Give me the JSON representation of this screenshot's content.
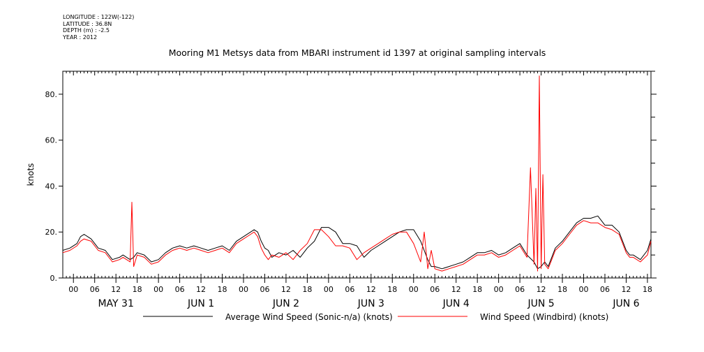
{
  "header": {
    "longitude": "LONGITUDE : 122W(-122)",
    "latitude": "LATITUDE : 36.8N",
    "depth": "DEPTH (m) : -2.5",
    "year": "YEAR : 2012"
  },
  "chart_data": {
    "type": "line",
    "title": "Mooring M1 Metsys data from MBARI instrument id 1397 at original sampling intervals",
    "ylabel": "knots",
    "xlabel": "",
    "ylim": [
      0,
      90
    ],
    "yticks": [
      0,
      20,
      40,
      60,
      80
    ],
    "ytick_labels": [
      "0.",
      "20.",
      "40.",
      "60.",
      "80."
    ],
    "xlim_hours": [
      -3,
      163
    ],
    "x_hour_labels": [
      {
        "h": 0,
        "label": "00"
      },
      {
        "h": 6,
        "label": "06"
      },
      {
        "h": 12,
        "label": "12"
      },
      {
        "h": 18,
        "label": "18"
      },
      {
        "h": 24,
        "label": "00"
      },
      {
        "h": 30,
        "label": "06"
      },
      {
        "h": 36,
        "label": "12"
      },
      {
        "h": 42,
        "label": "18"
      },
      {
        "h": 48,
        "label": "00"
      },
      {
        "h": 54,
        "label": "06"
      },
      {
        "h": 60,
        "label": "12"
      },
      {
        "h": 66,
        "label": "18"
      },
      {
        "h": 72,
        "label": "00"
      },
      {
        "h": 78,
        "label": "06"
      },
      {
        "h": 84,
        "label": "12"
      },
      {
        "h": 90,
        "label": "18"
      },
      {
        "h": 96,
        "label": "00"
      },
      {
        "h": 102,
        "label": "06"
      },
      {
        "h": 108,
        "label": "12"
      },
      {
        "h": 114,
        "label": "18"
      },
      {
        "h": 120,
        "label": "00"
      },
      {
        "h": 126,
        "label": "06"
      },
      {
        "h": 132,
        "label": "12"
      },
      {
        "h": 138,
        "label": "18"
      },
      {
        "h": 144,
        "label": "00"
      },
      {
        "h": 150,
        "label": "06"
      },
      {
        "h": 156,
        "label": "12"
      },
      {
        "h": 162,
        "label": "18"
      }
    ],
    "day_labels": [
      {
        "h": 12,
        "label": "MAY 31"
      },
      {
        "h": 36,
        "label": "JUN  1"
      },
      {
        "h": 60,
        "label": "JUN  2"
      },
      {
        "h": 84,
        "label": "JUN  3"
      },
      {
        "h": 108,
        "label": "JUN  4"
      },
      {
        "h": 132,
        "label": "JUN  5"
      },
      {
        "h": 156,
        "label": "JUN  6"
      }
    ],
    "grid": false,
    "legend_position": "bottom",
    "series": [
      {
        "name": "Average Wind Speed (Sonic-n/a) (knots)",
        "color": "#000000",
        "x_hours": [
          -3,
          -1,
          1,
          2,
          3,
          5,
          7,
          9,
          11,
          13,
          14,
          15,
          16,
          17,
          18,
          20,
          22,
          24,
          26,
          28,
          30,
          32,
          34,
          36,
          38,
          40,
          42,
          44,
          46,
          48,
          50,
          51,
          52,
          53,
          54,
          55,
          56,
          58,
          60,
          62,
          64,
          66,
          68,
          70,
          72,
          74,
          76,
          78,
          80,
          82,
          84,
          86,
          88,
          90,
          92,
          94,
          96,
          98,
          100,
          101,
          102,
          104,
          106,
          108,
          110,
          112,
          114,
          116,
          118,
          120,
          122,
          124,
          126,
          128,
          130,
          131,
          132,
          133,
          134,
          135,
          136,
          138,
          140,
          142,
          144,
          146,
          148,
          150,
          152,
          154,
          156,
          157,
          158,
          160,
          162,
          163
        ],
        "values": [
          12,
          13,
          15,
          18,
          19,
          17,
          13,
          12,
          8,
          9,
          10,
          9,
          8,
          9,
          11,
          10,
          7,
          8,
          11,
          13,
          14,
          13,
          14,
          13,
          12,
          13,
          14,
          12,
          16,
          18,
          20,
          21,
          20,
          16,
          13,
          12,
          9,
          11,
          10,
          12,
          9,
          13,
          16,
          22,
          22,
          20,
          15,
          15,
          14,
          9,
          12,
          14,
          16,
          18,
          20,
          21,
          21,
          16,
          8,
          5,
          5,
          4,
          5,
          6,
          7,
          9,
          11,
          11,
          12,
          10,
          11,
          13,
          15,
          10,
          7,
          4,
          5,
          7,
          5,
          9,
          13,
          16,
          20,
          24,
          26,
          26,
          27,
          23,
          23,
          20,
          12,
          10,
          10,
          8,
          12,
          17
        ]
      },
      {
        "name": "Wind Speed (Windbird) (knots)",
        "color": "#ff0000",
        "x_hours": [
          -3,
          -1,
          1,
          2,
          3,
          5,
          7,
          9,
          11,
          13,
          14,
          15,
          16,
          16.5,
          17,
          18,
          20,
          22,
          24,
          26,
          28,
          30,
          32,
          34,
          36,
          38,
          40,
          42,
          44,
          46,
          48,
          50,
          51,
          52,
          53,
          54,
          55,
          56,
          58,
          60,
          62,
          64,
          66,
          68,
          70,
          72,
          74,
          76,
          78,
          80,
          82,
          84,
          86,
          88,
          90,
          92,
          94,
          96,
          98,
          99,
          100,
          101,
          102,
          104,
          106,
          108,
          110,
          112,
          114,
          116,
          118,
          120,
          122,
          124,
          126,
          128,
          129,
          130,
          130.5,
          131,
          131.5,
          132,
          132.5,
          133,
          134,
          135,
          136,
          138,
          140,
          142,
          144,
          146,
          148,
          150,
          152,
          154,
          156,
          157,
          158,
          160,
          162,
          163
        ],
        "values": [
          11,
          12,
          14,
          16,
          17,
          16,
          12,
          11,
          7,
          8,
          9,
          8,
          7,
          33,
          5,
          10,
          9,
          6,
          7,
          10,
          12,
          13,
          12,
          13,
          12,
          11,
          12,
          13,
          11,
          15,
          17,
          19,
          20,
          18,
          13,
          10,
          8,
          10,
          9,
          11,
          8,
          12,
          15,
          21,
          21,
          18,
          14,
          14,
          13,
          8,
          11,
          13,
          15,
          17,
          19,
          20,
          20,
          15,
          7,
          20,
          4,
          12,
          4,
          3,
          4,
          5,
          6,
          8,
          10,
          10,
          11,
          9,
          10,
          12,
          14,
          9,
          48,
          6,
          39,
          3,
          88,
          4,
          45,
          6,
          4,
          8,
          12,
          15,
          19,
          23,
          25,
          24,
          24,
          22,
          21,
          19,
          11,
          9,
          9,
          7,
          10,
          16
        ]
      }
    ]
  }
}
